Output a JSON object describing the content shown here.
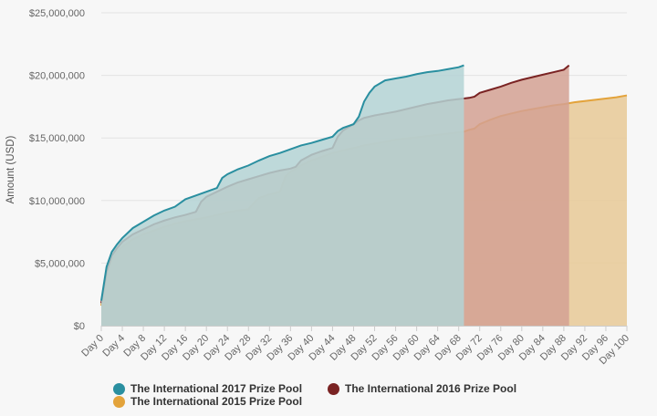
{
  "chart_data": {
    "type": "area",
    "title": "",
    "xlabel": "",
    "ylabel": "Amount (USD)",
    "xlim": [
      0,
      100
    ],
    "ylim": [
      0,
      25000000
    ],
    "grid": true,
    "legend_position": "bottom",
    "y_ticks": [
      0,
      5000000,
      10000000,
      15000000,
      20000000,
      25000000
    ],
    "y_tick_labels": [
      "$0",
      "$5,000,000",
      "$10,000,000",
      "$15,000,000",
      "$20,000,000",
      "$25,000,000"
    ],
    "x_ticks": [
      0,
      4,
      8,
      12,
      16,
      20,
      24,
      28,
      32,
      36,
      40,
      44,
      48,
      52,
      56,
      60,
      64,
      68,
      72,
      76,
      80,
      84,
      88,
      92,
      96,
      100
    ],
    "x_tick_labels": [
      "Day 0",
      "Day 4",
      "Day 8",
      "Day 12",
      "Day 16",
      "Day 20",
      "Day 24",
      "Day 28",
      "Day 32",
      "Day 36",
      "Day 40",
      "Day 44",
      "Day 48",
      "Day 52",
      "Day 56",
      "Day 60",
      "Day 64",
      "Day 68",
      "Day 72",
      "Day 76",
      "Day 80",
      "Day 84",
      "Day 88",
      "Day 92",
      "Day 96",
      "Day 100"
    ],
    "series": [
      {
        "name": "The International 2015 Prize Pool",
        "color": "#e3a33b",
        "fill": "#e7c996",
        "x": [
          0,
          1,
          2,
          3,
          4,
          6,
          8,
          10,
          12,
          14,
          16,
          18,
          20,
          22,
          24,
          26,
          28,
          29,
          30,
          32,
          34,
          35,
          36,
          38,
          40,
          42,
          44,
          46,
          48,
          50,
          52,
          54,
          56,
          58,
          60,
          62,
          64,
          66,
          68,
          69,
          70,
          71,
          72,
          74,
          76,
          78,
          80,
          82,
          84,
          86,
          88,
          90,
          92,
          94,
          96,
          98,
          100
        ],
        "values": [
          1600000,
          4000000,
          5200000,
          5900000,
          6300000,
          6900000,
          7300000,
          7600000,
          7900000,
          8150000,
          8350000,
          8500000,
          8650000,
          8850000,
          9050000,
          9200000,
          9300000,
          9800000,
          10200000,
          10500000,
          10700000,
          11900000,
          12300000,
          12800000,
          13200000,
          13500000,
          13800000,
          14000000,
          14200000,
          14400000,
          14550000,
          14700000,
          14850000,
          14950000,
          15050000,
          15150000,
          15250000,
          15350000,
          15450000,
          15500000,
          15650000,
          15750000,
          16100000,
          16450000,
          16750000,
          16950000,
          17150000,
          17300000,
          17450000,
          17600000,
          17700000,
          17850000,
          17950000,
          18050000,
          18150000,
          18250000,
          18400000
        ]
      },
      {
        "name": "The International 2016 Prize Pool",
        "color": "#7a2323",
        "fill": "#d4a193",
        "x": [
          0,
          1,
          2,
          3,
          4,
          6,
          8,
          10,
          12,
          14,
          16,
          18,
          19,
          20,
          22,
          24,
          26,
          28,
          30,
          32,
          34,
          36,
          37,
          38,
          40,
          42,
          44,
          45,
          46,
          48,
          49,
          50,
          52,
          54,
          56,
          58,
          60,
          62,
          64,
          66,
          68,
          70,
          71,
          72,
          74,
          76,
          78,
          80,
          82,
          84,
          86,
          88,
          89
        ],
        "values": [
          1800000,
          4300000,
          5600000,
          6200000,
          6700000,
          7300000,
          7700000,
          8100000,
          8400000,
          8650000,
          8850000,
          9100000,
          9900000,
          10300000,
          10700000,
          11100000,
          11450000,
          11700000,
          11950000,
          12200000,
          12400000,
          12550000,
          12700000,
          13200000,
          13650000,
          13950000,
          14200000,
          15100000,
          15600000,
          16100000,
          16400000,
          16600000,
          16800000,
          16950000,
          17100000,
          17300000,
          17500000,
          17700000,
          17850000,
          18000000,
          18100000,
          18200000,
          18300000,
          18600000,
          18850000,
          19100000,
          19400000,
          19650000,
          19850000,
          20050000,
          20250000,
          20450000,
          20800000
        ]
      },
      {
        "name": "The International 2017 Prize Pool",
        "color": "#2a8fa0",
        "fill": "#b4d3d5",
        "x": [
          0,
          1,
          2,
          3,
          4,
          6,
          8,
          10,
          12,
          14,
          16,
          18,
          20,
          22,
          23,
          24,
          26,
          28,
          30,
          32,
          34,
          36,
          38,
          40,
          42,
          44,
          45,
          46,
          48,
          49,
          50,
          51,
          52,
          54,
          56,
          58,
          60,
          62,
          64,
          66,
          68,
          69
        ],
        "values": [
          2000000,
          4700000,
          5900000,
          6500000,
          7000000,
          7800000,
          8300000,
          8800000,
          9200000,
          9500000,
          10100000,
          10400000,
          10700000,
          11000000,
          11800000,
          12100000,
          12500000,
          12800000,
          13200000,
          13550000,
          13800000,
          14100000,
          14400000,
          14600000,
          14850000,
          15100000,
          15550000,
          15800000,
          16100000,
          16700000,
          17900000,
          18600000,
          19100000,
          19600000,
          19750000,
          19900000,
          20100000,
          20250000,
          20350000,
          20500000,
          20650000,
          20800000
        ]
      }
    ]
  }
}
